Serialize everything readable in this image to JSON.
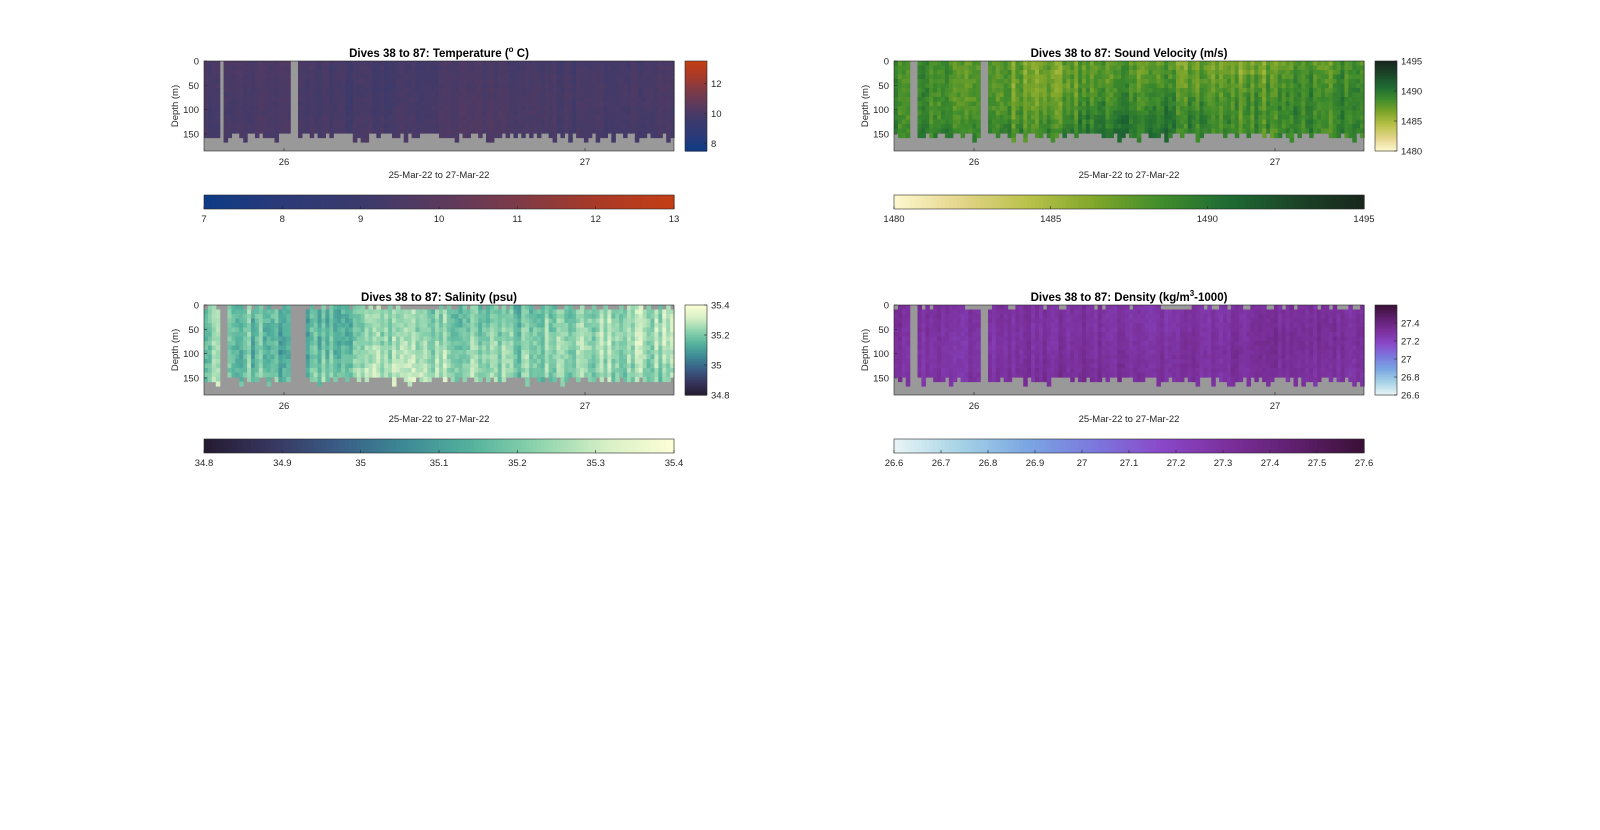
{
  "figure": {
    "colors": {
      "background": "#ffffff",
      "axes_background": "#999999",
      "text": "#262626"
    }
  },
  "chart_data": [
    {
      "type": "heatmap",
      "id": "temperature",
      "title_main": "Dives 38 to 87: Temperature (",
      "title_sup": "o",
      "title_tail": " C)",
      "xlabel": "25-Mar-22 to 27-Mar-22",
      "ylabel": "Depth (m)",
      "x_ticks": [
        "26",
        "27"
      ],
      "y_ticks": [
        "0",
        "50",
        "100",
        "150"
      ],
      "ylim": [
        0,
        185
      ],
      "y_reversed": true,
      "grid": false,
      "colorbar_right": {
        "ticks": [
          "8",
          "10",
          "12"
        ],
        "range": [
          7.5,
          13.5
        ]
      },
      "colorbar_bottom": {
        "ticks": [
          "7",
          "8",
          "9",
          "10",
          "11",
          "12",
          "13"
        ],
        "range": [
          7,
          13
        ]
      },
      "colormap": [
        "#0d3b85",
        "#2c3a78",
        "#3b3a6c",
        "#5a3a5e",
        "#7d3a48",
        "#a83a28",
        "#c43e14"
      ],
      "field": {
        "base": 9.4,
        "variation": 0.35
      },
      "gap_columns": [
        [
          15,
          18
        ],
        [
          83,
          92
        ]
      ]
    },
    {
      "type": "heatmap",
      "id": "sound_velocity",
      "title_main": "Dives 38 to 87: Sound Velocity (m/s)",
      "title_sup": "",
      "title_tail": "",
      "xlabel": "25-Mar-22 to 27-Mar-22",
      "ylabel": "Depth (m)",
      "x_ticks": [
        "26",
        "27"
      ],
      "y_ticks": [
        "0",
        "50",
        "100",
        "150"
      ],
      "ylim": [
        0,
        185
      ],
      "y_reversed": true,
      "grid": false,
      "colorbar_right": {
        "ticks": [
          "1480",
          "1485",
          "1490",
          "1495"
        ],
        "range": [
          1480,
          1495
        ]
      },
      "colorbar_bottom": {
        "ticks": [
          "1480",
          "1485",
          "1490",
          "1495"
        ],
        "range": [
          1480,
          1495
        ]
      },
      "colormap": [
        "#fdf8cf",
        "#e4d58a",
        "#b9c24a",
        "#7fa62a",
        "#3f8c2c",
        "#1e6a33",
        "#1c4428",
        "#18251c"
      ],
      "field": {
        "base": 1487.5,
        "variation": 2.5
      },
      "gap_columns": [
        [
          15,
          21
        ],
        [
          83,
          92
        ]
      ]
    },
    {
      "type": "heatmap",
      "id": "salinity",
      "title_main": "Dives 38 to 87: Salinity (psu)",
      "title_sup": "",
      "title_tail": "",
      "xlabel": "25-Mar-22 to 27-Mar-22",
      "ylabel": "Depth (m)",
      "x_ticks": [
        "26",
        "27"
      ],
      "y_ticks": [
        "0",
        "50",
        "100",
        "150"
      ],
      "ylim": [
        0,
        185
      ],
      "y_reversed": true,
      "grid": false,
      "colorbar_right": {
        "ticks": [
          "34.8",
          "35",
          "35.2",
          "35.4"
        ],
        "range": [
          34.8,
          35.4
        ]
      },
      "colorbar_bottom": {
        "ticks": [
          "34.8",
          "34.9",
          "35",
          "35.1",
          "35.2",
          "35.3",
          "35.4"
        ],
        "range": [
          34.8,
          35.4
        ]
      },
      "colormap": [
        "#241b30",
        "#37365f",
        "#3a5d86",
        "#3d8a96",
        "#55b39d",
        "#8fd4ae",
        "#d8f0c6",
        "#fdfed6"
      ],
      "field": {
        "base": 35.22,
        "variation": 0.12
      },
      "gap_columns": [
        [
          15,
          21
        ],
        [
          83,
          100
        ]
      ]
    },
    {
      "type": "heatmap",
      "id": "density",
      "title_main": "Dives 38 to 87: Density (kg/m",
      "title_sup": "3",
      "title_tail": "-1000)",
      "xlabel": "25-Mar-22 to 27-Mar-22",
      "ylabel": "Depth (m)",
      "x_ticks": [
        "26",
        "27"
      ],
      "y_ticks": [
        "0",
        "50",
        "100",
        "150"
      ],
      "ylim": [
        0,
        185
      ],
      "y_reversed": true,
      "grid": false,
      "colorbar_right": {
        "ticks": [
          "26.6",
          "26.8",
          "27",
          "27.2",
          "27.4"
        ],
        "range": [
          26.6,
          27.6
        ]
      },
      "colorbar_bottom": {
        "ticks": [
          "26.6",
          "26.7",
          "26.8",
          "26.9",
          "27",
          "27.1",
          "27.2",
          "27.3",
          "27.4",
          "27.5",
          "27.6"
        ],
        "range": [
          26.6,
          27.6
        ]
      },
      "colormap": [
        "#e9f5f5",
        "#a6d2e6",
        "#7aa6e2",
        "#7b77dd",
        "#8a48c8",
        "#7a2f9a",
        "#5e1f6c",
        "#3a1035"
      ],
      "field": {
        "base": 27.3,
        "variation": 0.07
      },
      "gap_columns": [
        [
          15,
          21
        ],
        [
          83,
          92
        ]
      ]
    }
  ]
}
